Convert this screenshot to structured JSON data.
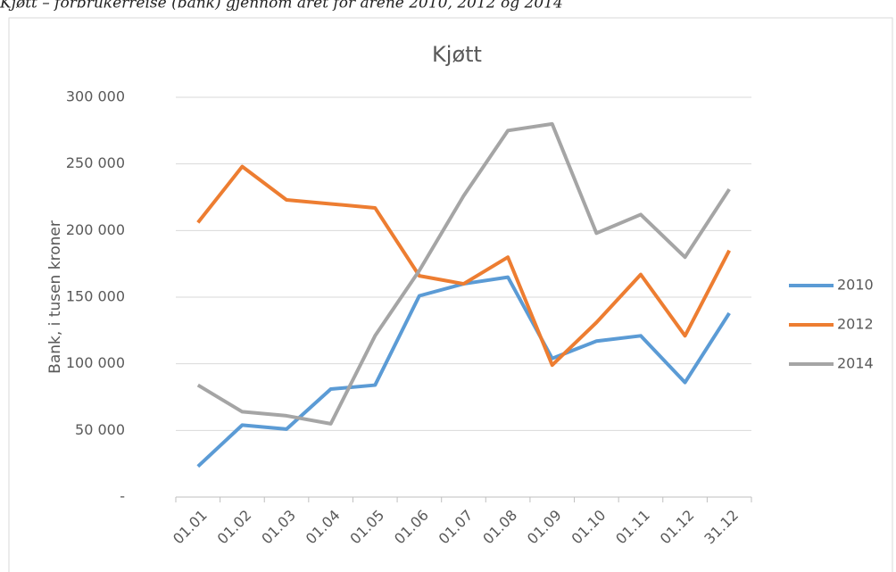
{
  "caption": "Kjøtt – forbrukerreise (bank) gjennom året for årene 2010, 2012 og 2014",
  "chart_data": {
    "type": "line",
    "title": "Kjøtt",
    "y_label": "Bank, i tusen kroner",
    "categories": [
      "01.01",
      "01.02",
      "01.03",
      "01.04",
      "01.05",
      "01.06",
      "01.07",
      "01.08",
      "01.09",
      "01.10",
      "01.11",
      "01.12",
      "31.12"
    ],
    "series": [
      {
        "name": "2010",
        "color": "#5b9bd5",
        "values": [
          23000,
          54000,
          51000,
          81000,
          84000,
          151000,
          160000,
          165000,
          104000,
          117000,
          121000,
          86000,
          138000
        ]
      },
      {
        "name": "2012",
        "color": "#ed7d31",
        "values": [
          206000,
          248000,
          223000,
          220000,
          217000,
          166000,
          160000,
          180000,
          99000,
          131000,
          167000,
          121000,
          185000
        ]
      },
      {
        "name": "2014",
        "color": "#a5a5a5",
        "values": [
          84000,
          64000,
          61000,
          55000,
          121000,
          170000,
          226000,
          275000,
          280000,
          198000,
          212000,
          180000,
          231000
        ]
      }
    ],
    "ylim": [
      0,
      300000
    ],
    "yticks": [
      {
        "value": 0,
        "label": "-"
      },
      {
        "value": 50000,
        "label": "50 000"
      },
      {
        "value": 100000,
        "label": "100 000"
      },
      {
        "value": 150000,
        "label": "150 000"
      },
      {
        "value": 200000,
        "label": "200 000"
      },
      {
        "value": 250000,
        "label": "250 000"
      },
      {
        "value": 300000,
        "label": "300 000"
      }
    ],
    "grid": true,
    "legend": "right"
  }
}
